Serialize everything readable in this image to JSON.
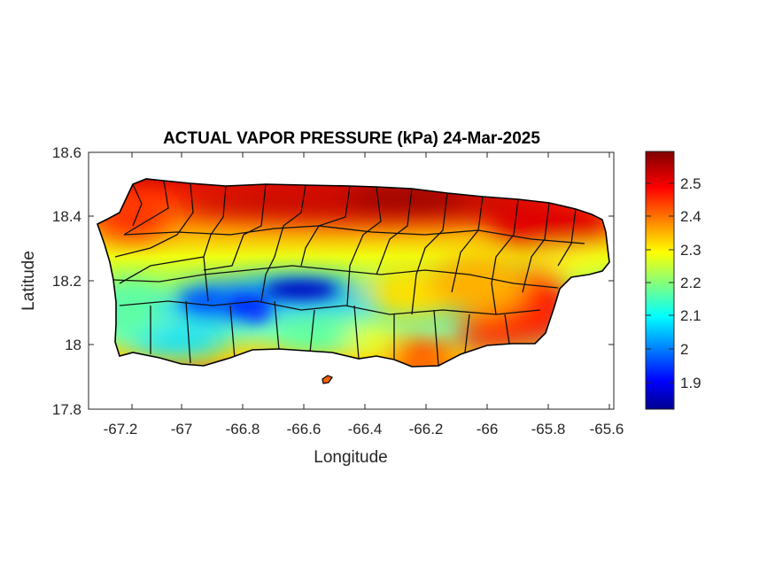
{
  "chart_data": {
    "type": "heatmap",
    "title": "ACTUAL VAPOR PRESSURE (kPa) 24-Mar-2025",
    "xlabel": "Longitude",
    "ylabel": "Latitude",
    "xlim": [
      -67.3,
      -65.58
    ],
    "ylim": [
      17.8,
      18.6
    ],
    "x_ticks": [
      "-67.2",
      "-67",
      "-66.8",
      "-66.6",
      "-66.4",
      "-66.2",
      "-66",
      "-65.8",
      "-65.6"
    ],
    "y_ticks": [
      "17.8",
      "18",
      "18.2",
      "18.4",
      "18.6"
    ],
    "colorbar": {
      "colormap": "jet",
      "range": [
        1.82,
        2.59
      ],
      "ticks": [
        "1.9",
        "2",
        "2.1",
        "2.2",
        "2.3",
        "2.4",
        "2.5"
      ]
    },
    "region": "Puerto Rico (municipal boundaries)",
    "pattern": "High vapor pressure (about 2.5 kPa) along the north coast and the east/southeast coast; minimum (about 1.85-1.95 kPa) over the south-central interior mountains near -66.8 to -66.5 longitude, 18.1-18.2 latitude; moderate values (2.1-2.3) in the west-central interior and southwest."
  }
}
